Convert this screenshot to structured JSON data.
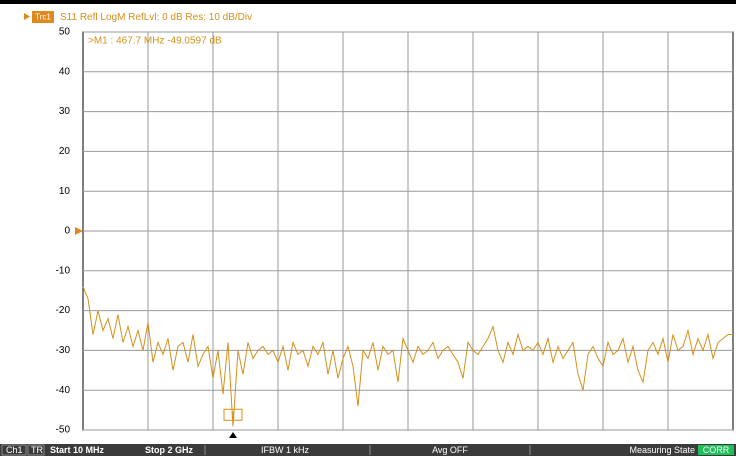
{
  "trace_tab": "Trc1",
  "status_bar": {
    "channel": "Ch1",
    "trace_mode": "TR",
    "start": "Start 10 MHz",
    "stop": "Stop 2 GHz",
    "ifbw": "IFBW 1 kHz",
    "avg": "Avg OFF",
    "state": "Measuring State",
    "corr": "CORR"
  },
  "chart_data": {
    "type": "line",
    "title": "S11 Refl LogM RefLvl: 0 dB Res: 10 dB/Div",
    "annotation": ">M1 :  467.7 MHz -49.0597 dB",
    "marker_label": "1",
    "color": "#d4901a",
    "grid": true,
    "ylim": [
      -50,
      50
    ],
    "yticks": [
      -50,
      -40,
      -30,
      -20,
      -10,
      0,
      10,
      20,
      30,
      40,
      50
    ],
    "values": [
      -14,
      -17,
      -26,
      -20,
      -25,
      -22,
      -27,
      -21,
      -28,
      -24,
      -29,
      -25,
      -30,
      -23,
      -33,
      -28,
      -31,
      -27,
      -35,
      -29,
      -28,
      -33,
      -26,
      -34,
      -31,
      -29,
      -37,
      -30,
      -41,
      -28,
      -49.0597,
      -30,
      -36,
      -28,
      -32,
      -30,
      -29,
      -31,
      -30,
      -33,
      -29,
      -35,
      -28,
      -31,
      -30,
      -34,
      -29,
      -31,
      -28,
      -36,
      -30,
      -37,
      -32,
      -29,
      -34,
      -44,
      -30,
      -32,
      -28,
      -35,
      -29,
      -31,
      -30,
      -38,
      -27,
      -30,
      -33,
      -29,
      -31,
      -30,
      -28,
      -32,
      -30,
      -29,
      -31,
      -33,
      -37,
      -28,
      -30,
      -31,
      -29,
      -27,
      -24,
      -30,
      -33,
      -28,
      -31,
      -26,
      -30,
      -29,
      -30,
      -28,
      -31,
      -27,
      -33,
      -29,
      -32,
      -30,
      -28,
      -36,
      -40,
      -31,
      -29,
      -32,
      -34,
      -28,
      -31,
      -30,
      -27,
      -33,
      -29,
      -35,
      -38,
      -30,
      -28,
      -31,
      -27,
      -33,
      -26,
      -30,
      -29,
      -25,
      -31,
      -27,
      -30,
      -26,
      -32,
      -28,
      -27,
      -26,
      -26
    ]
  }
}
